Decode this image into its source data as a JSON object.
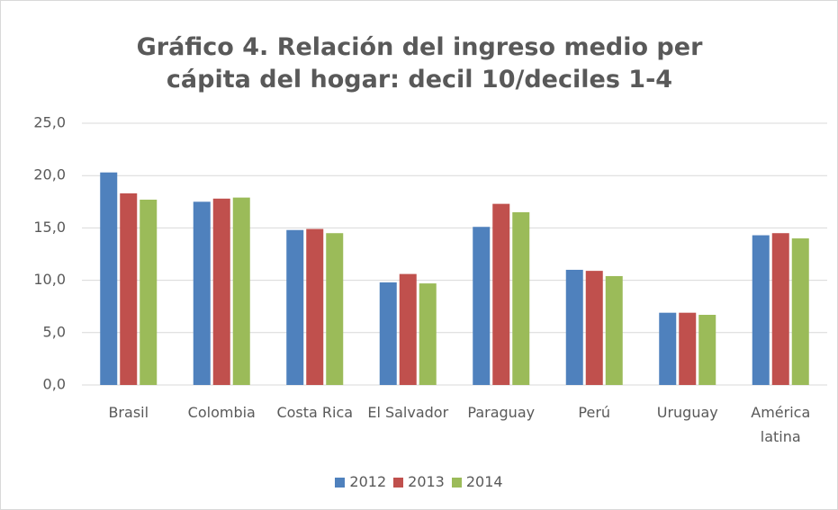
{
  "chart_data": {
    "type": "bar",
    "title": "Gráfico 4. Relación del ingreso medio per cápita del hogar: decil 10/deciles 1-4",
    "categories": [
      "Brasil",
      "Colombia",
      "Costa Rica",
      "El Salvador",
      "Paraguay",
      "Perú",
      "Uruguay",
      "América latina"
    ],
    "series": [
      {
        "name": "2012",
        "color": "#4f81bd",
        "values": [
          20.3,
          17.5,
          14.8,
          9.8,
          15.1,
          11.0,
          6.9,
          14.3
        ]
      },
      {
        "name": "2013",
        "color": "#c0504d",
        "values": [
          18.3,
          17.8,
          14.9,
          10.6,
          17.3,
          10.9,
          6.9,
          14.5
        ]
      },
      {
        "name": "2014",
        "color": "#9bbb59",
        "values": [
          17.7,
          17.9,
          14.5,
          9.7,
          16.5,
          10.4,
          6.7,
          14.0
        ]
      }
    ],
    "ylim": [
      0,
      25
    ],
    "yticks": [
      {
        "value": 0,
        "label": "0,0"
      },
      {
        "value": 5,
        "label": "5,0"
      },
      {
        "value": 10,
        "label": "10,0"
      },
      {
        "value": 15,
        "label": "15,0"
      },
      {
        "value": 20,
        "label": "20,0"
      },
      {
        "value": 25,
        "label": "25,0"
      }
    ],
    "grid": true,
    "legend": "bottom"
  }
}
